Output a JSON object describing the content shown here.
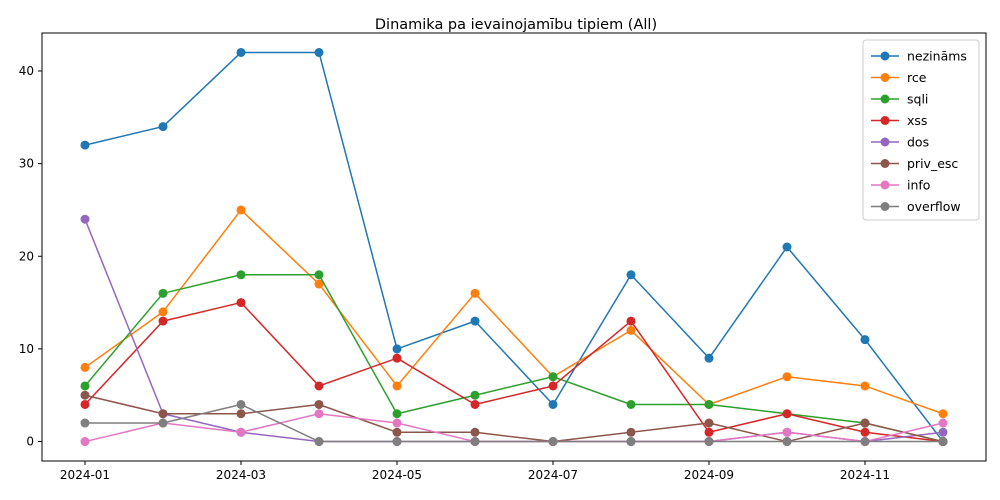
{
  "chart_data": {
    "type": "line",
    "title": "Dinamika pa ievainojamību tipiem (All)",
    "xlabel": "",
    "ylabel": "",
    "x": [
      "2024-01",
      "2024-02",
      "2024-03",
      "2024-04",
      "2024-05",
      "2024-06",
      "2024-07",
      "2024-08",
      "2024-09",
      "2024-10",
      "2024-11",
      "2024-12"
    ],
    "x_tick_labels": [
      "2024-01",
      "2024-03",
      "2024-05",
      "2024-07",
      "2024-09",
      "2024-11"
    ],
    "y_ticks": [
      0,
      10,
      20,
      30,
      40
    ],
    "ylim": [
      -2.1,
      44.1
    ],
    "grid": false,
    "legend_position": "top-right",
    "series": [
      {
        "name": "nezināms",
        "color": "#1f77b4",
        "values": [
          32,
          34,
          42,
          42,
          10,
          13,
          4,
          18,
          9,
          21,
          11,
          0
        ]
      },
      {
        "name": "rce",
        "color": "#ff7f0e",
        "values": [
          8,
          14,
          25,
          17,
          6,
          16,
          7,
          12,
          4,
          7,
          6,
          3
        ]
      },
      {
        "name": "sqli",
        "color": "#2ca02c",
        "values": [
          6,
          16,
          18,
          18,
          3,
          5,
          7,
          4,
          4,
          3,
          2,
          0
        ]
      },
      {
        "name": "xss",
        "color": "#d62728",
        "values": [
          4,
          13,
          15,
          6,
          9,
          4,
          6,
          13,
          1,
          3,
          1,
          0
        ]
      },
      {
        "name": "dos",
        "color": "#9467bd",
        "values": [
          24,
          3,
          1,
          0,
          0,
          0,
          0,
          0,
          0,
          1,
          0,
          1
        ]
      },
      {
        "name": "priv_esc",
        "color": "#8c564b",
        "values": [
          5,
          3,
          3,
          4,
          1,
          1,
          0,
          1,
          2,
          0,
          2,
          0
        ]
      },
      {
        "name": "info",
        "color": "#e377c2",
        "values": [
          0,
          2,
          1,
          3,
          2,
          0,
          0,
          0,
          0,
          1,
          0,
          2
        ]
      },
      {
        "name": "overflow",
        "color": "#7f7f7f",
        "values": [
          2,
          2,
          4,
          0,
          0,
          0,
          0,
          0,
          0,
          0,
          0,
          0
        ]
      }
    ]
  }
}
